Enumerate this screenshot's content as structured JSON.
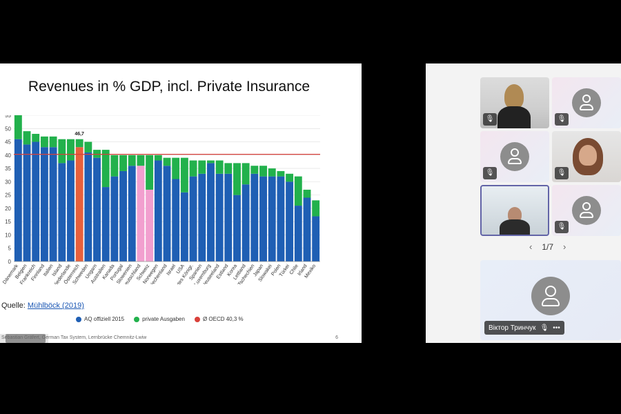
{
  "slide": {
    "title": "Revenues in % GDP, incl. Private Insurance",
    "source_label": "Quelle: ",
    "source_link": "Mühlböck (2019)",
    "footer": "Sebastian Gräfert, German Tax System, Lernbrücke Chemnitz-Lwiw",
    "page_number": "6",
    "annotation": "46,7",
    "legend": [
      {
        "label": "AQ offiziell 2015",
        "color": "#1f5fb4"
      },
      {
        "label": "private Ausgaben",
        "color": "#22b14c"
      },
      {
        "label": "Ø OECD 40,3 %",
        "color": "#d9403a"
      }
    ]
  },
  "chart_data": {
    "type": "bar",
    "stacked": true,
    "ylim": [
      0,
      55
    ],
    "yticks": [
      0,
      5,
      10,
      15,
      20,
      25,
      30,
      35,
      40,
      45,
      50,
      55
    ],
    "reference_line": 40.3,
    "categories": [
      "Dänemark",
      "Belgien",
      "Frankreich",
      "Finnland",
      "Italien",
      "Island",
      "Niederlande",
      "Österreich",
      "Schweden",
      "Ungarn",
      "Australien",
      "Kanada",
      "Portugal",
      "Slowenien",
      "Deutschland",
      "Schweiz",
      "Norwegen",
      "Griechenland",
      "Israel",
      "USA",
      "Vereinigtes Königr.",
      "Spanien",
      "Luxemburg",
      "Neuseeland",
      "Estland",
      "Korea",
      "Lettland",
      "Tschechien",
      "Japan",
      "Slowakei",
      "Polen",
      "Türkei",
      "Chile",
      "Irland",
      "Mexiko"
    ],
    "series": [
      {
        "name": "AQ offiziell 2015",
        "values": [
          46,
          44,
          45,
          43,
          43,
          37,
          38,
          43,
          41,
          39,
          28,
          32,
          34,
          36,
          36,
          27,
          38,
          36,
          31,
          26,
          32,
          33,
          37,
          33,
          33,
          25,
          29,
          33,
          32,
          32,
          32,
          30,
          21,
          24,
          17
        ]
      },
      {
        "name": "private Ausgaben",
        "values": [
          9,
          5,
          3,
          4,
          4,
          9,
          8,
          3,
          4,
          3,
          14,
          8,
          6,
          4,
          4,
          13,
          2,
          3,
          8,
          13,
          6,
          5,
          1,
          5,
          4,
          12,
          8,
          3,
          4,
          3,
          2,
          3,
          11,
          3,
          6
        ]
      }
    ],
    "highlight": {
      "Österreich": "#e8603c",
      "Deutschland": "#f29fcf",
      "Schweiz": "#f29fcf"
    }
  },
  "teams": {
    "pager": "1/7",
    "main_name": "Віктор Тринчук",
    "more": "•••",
    "mic_muted": "🎙"
  }
}
